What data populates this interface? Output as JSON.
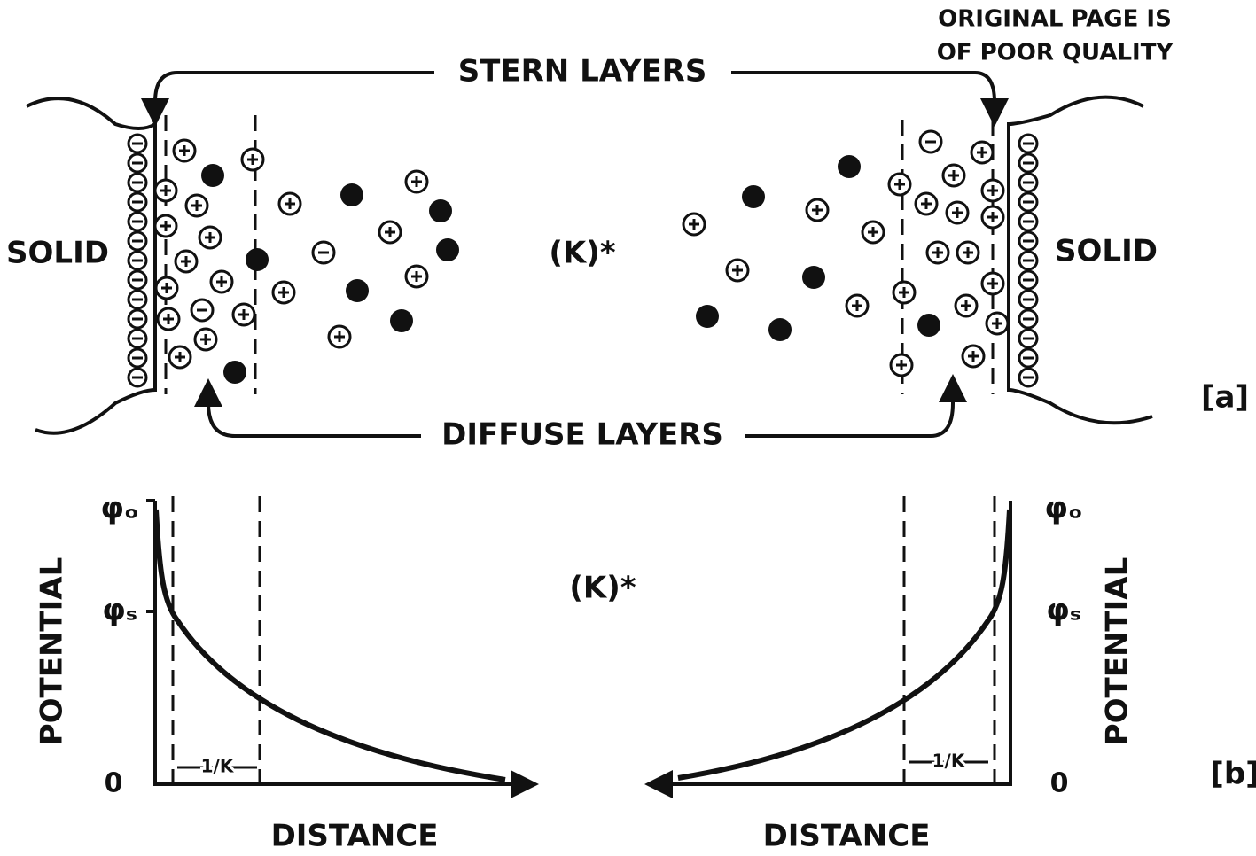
{
  "header": {
    "note_lines": [
      "ORIGINAL PAGE IS",
      "OF POOR QUALITY"
    ]
  },
  "panel_a": {
    "label": "[a]",
    "top_label": "STERN LAYERS",
    "bottom_label": "DIFFUSE LAYERS",
    "left_label": "SOLID",
    "right_label": "SOLID",
    "center_label": "(K)*"
  },
  "panel_b": {
    "label": "[b]",
    "center_label": "(K)*",
    "left": {
      "y_axis": "POTENTIAL",
      "x_axis": "DISTANCE",
      "phi_0": "φₒ",
      "phi_s": "φₛ",
      "zero": "0",
      "debye": "1/K"
    },
    "right": {
      "y_axis": "POTENTIAL",
      "x_axis": "DISTANCE",
      "phi_0": "φₒ",
      "phi_s": "φₛ",
      "zero": "0",
      "debye": "1/K"
    }
  }
}
